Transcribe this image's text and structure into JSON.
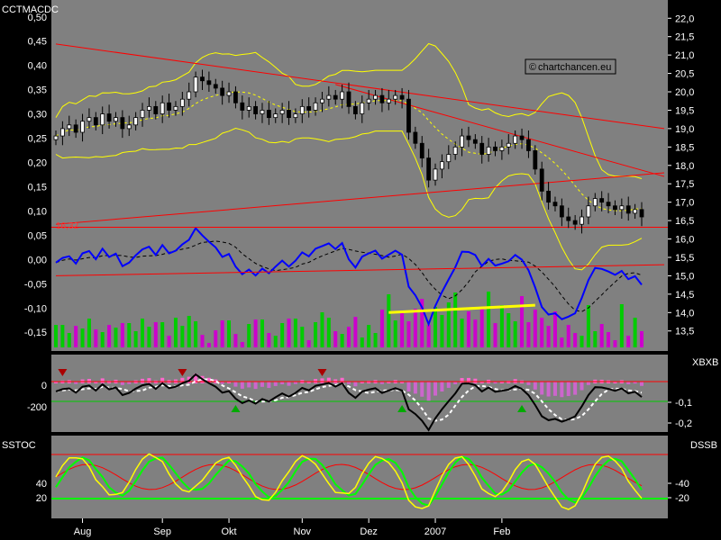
{
  "chart_data": [
    {
      "panel": "price",
      "type": "candlestick",
      "title": "CCTMACDC",
      "watermark": "chartchancen.eu",
      "watermark_icon": "copyright-icon",
      "left_axis": {
        "ticks": [
          "0,50",
          "0,45",
          "0,40",
          "0,35",
          "0,30",
          "0,25",
          "0,20",
          "0,15",
          "0,10",
          "0,05",
          "0,00",
          "-0,05",
          "-0,10",
          "-0,15"
        ],
        "range": [
          -0.17,
          0.52
        ]
      },
      "right_axis": {
        "ticks": [
          "22,0",
          "21,5",
          "21,0",
          "20,5",
          "20,0",
          "19,5",
          "19,0",
          "18,5",
          "18,0",
          "17,5",
          "17,0",
          "16,5",
          "16,0",
          "15,5",
          "15,0",
          "14,5",
          "14,0",
          "13,5"
        ],
        "range": [
          13.2,
          22.3
        ]
      },
      "support_label": "16,32",
      "support_level": 16.32,
      "close_series": [
        18.8,
        19.0,
        19.1,
        18.9,
        19.2,
        19.3,
        19.1,
        19.4,
        19.2,
        19.3,
        19.0,
        19.1,
        19.3,
        19.5,
        19.6,
        19.4,
        19.7,
        19.5,
        19.6,
        19.8,
        20.0,
        20.4,
        20.3,
        20.2,
        20.1,
        19.9,
        20.0,
        19.7,
        19.5,
        19.6,
        19.4,
        19.5,
        19.3,
        19.4,
        19.5,
        19.3,
        19.4,
        19.6,
        19.5,
        19.7,
        19.8,
        19.9,
        19.8,
        20.0,
        19.6,
        19.4,
        19.7,
        19.8,
        19.9,
        19.7,
        19.8,
        19.9,
        19.8,
        18.9,
        18.6,
        18.2,
        17.6,
        17.9,
        18.1,
        18.3,
        18.5,
        18.8,
        18.7,
        18.6,
        18.3,
        18.5,
        18.4,
        18.5,
        18.6,
        18.8,
        18.7,
        18.4,
        17.9,
        17.3,
        17.0,
        16.9,
        16.6,
        16.5,
        16.4,
        16.6,
        16.9,
        17.1,
        17.0,
        16.9,
        16.8,
        16.9,
        16.7,
        16.8,
        16.6
      ],
      "trendlines": [
        {
          "from": [
            0,
            21.3
          ],
          "to": [
            88,
            19.0
          ],
          "color": "#ff0000"
        },
        {
          "from": [
            42,
            20.2
          ],
          "to": [
            88,
            17.7
          ],
          "color": "#ff0000"
        },
        {
          "from": [
            0,
            16.4
          ],
          "to": [
            88,
            17.8
          ],
          "color": "#ff0000"
        },
        {
          "from": [
            0,
            15.0
          ],
          "to": [
            88,
            15.3
          ],
          "color": "#ff0000"
        }
      ],
      "indicator_lines": [
        "macd",
        "macd-signal",
        "bollinger-upper",
        "bollinger-lower",
        "bollinger-mid"
      ],
      "volume_trend": {
        "from": [
          50,
          14.0
        ],
        "to": [
          72,
          14.2
        ],
        "color": "#ffff00"
      },
      "colors": {
        "candle": "#000000",
        "bollinger": "#ffff00",
        "macd": "#0000ff",
        "signal": "#000000",
        "volume_up": "#00cc00",
        "volume_down": "#cc00cc"
      }
    },
    {
      "panel": "xbxb",
      "type": "line",
      "title": "XBXB",
      "left_axis": {
        "ticks": [
          "0",
          "-200"
        ]
      },
      "right_axis": {
        "ticks": [
          "-0,1",
          "-0,2"
        ]
      },
      "markers": [
        {
          "type": "sell",
          "index": 1
        },
        {
          "type": "sell",
          "index": 19
        },
        {
          "type": "buy",
          "index": 27
        },
        {
          "type": "sell",
          "index": 40
        },
        {
          "type": "buy",
          "index": 52
        },
        {
          "type": "buy",
          "index": 70
        }
      ],
      "colors": {
        "main": "#000000",
        "signal": "#ffffff",
        "hist_up": "#ff66cc",
        "hist_down": "#cc66cc",
        "buy": "#00aa00",
        "sell": "#aa0000"
      }
    },
    {
      "panel": "stoch",
      "type": "line",
      "title_left": "SSTOC",
      "title_right": "DSSB",
      "left_axis": {
        "ticks": [
          "40",
          "20"
        ]
      },
      "right_axis": {
        "ticks": [
          "-40",
          "-20"
        ]
      },
      "colors": {
        "stoch_fast": "#ffff00",
        "stoch_slow": "#00ff00",
        "dss": "#ff0000",
        "guide_high": "#ff0000",
        "guide_low": "#00ff00"
      }
    }
  ],
  "x_axis": {
    "labels": [
      {
        "text": "Aug",
        "index": 4
      },
      {
        "text": "Sep",
        "index": 16
      },
      {
        "text": "Okt",
        "index": 26
      },
      {
        "text": "Nov",
        "index": 37
      },
      {
        "text": "Dez",
        "index": 47
      },
      {
        "text": "2007",
        "index": 57
      },
      {
        "text": "Feb",
        "index": 67
      }
    ]
  }
}
